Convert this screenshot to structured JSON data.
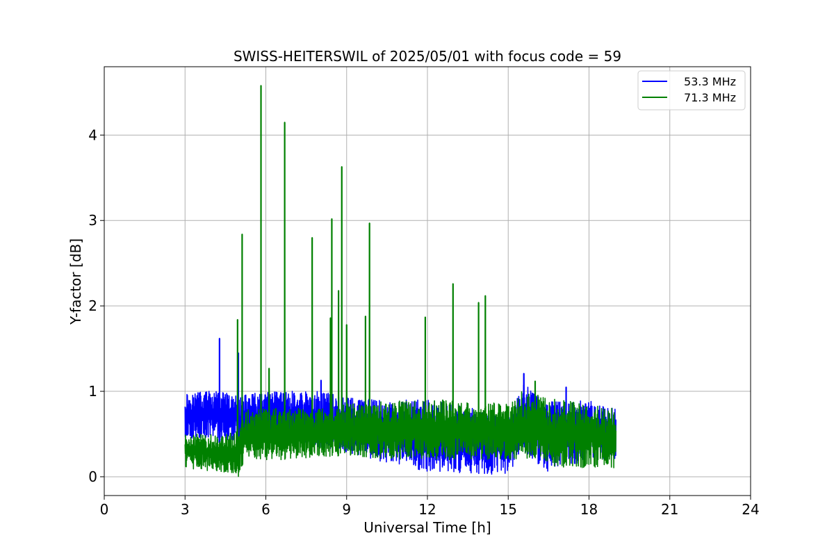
{
  "chart_data": {
    "type": "line",
    "title": "SWISS-HEITERSWIL of 2025/05/01 with focus code = 59",
    "xlabel": "Universal Time [h]",
    "ylabel": "Y-factor [dB]",
    "xlim": [
      0,
      24
    ],
    "ylim": [
      -0.22,
      4.8
    ],
    "xticks": [
      0,
      3,
      6,
      9,
      12,
      15,
      18,
      21,
      24
    ],
    "yticks": [
      0,
      1,
      2,
      3,
      4
    ],
    "grid": true,
    "legend_position": "top-right",
    "series": [
      {
        "name": "53.3 MHz",
        "color": "#0000ff",
        "x_range": [
          3.0,
          19.0
        ],
        "baseline_profile": [
          {
            "x": 3.0,
            "low": 0.45,
            "high": 1.0
          },
          {
            "x": 4.2,
            "low": 0.45,
            "high": 1.0
          },
          {
            "x": 5.0,
            "low": 0.4,
            "high": 0.95
          },
          {
            "x": 6.0,
            "low": 0.4,
            "high": 1.0
          },
          {
            "x": 8.0,
            "low": 0.35,
            "high": 1.0
          },
          {
            "x": 10.0,
            "low": 0.2,
            "high": 0.9
          },
          {
            "x": 12.0,
            "low": 0.05,
            "high": 0.9
          },
          {
            "x": 13.0,
            "low": 0.05,
            "high": 0.85
          },
          {
            "x": 15.0,
            "low": 0.02,
            "high": 0.7
          },
          {
            "x": 15.5,
            "low": 0.3,
            "high": 1.1
          },
          {
            "x": 16.5,
            "low": 0.05,
            "high": 0.9
          },
          {
            "x": 18.0,
            "low": 0.2,
            "high": 0.9
          },
          {
            "x": 19.0,
            "low": 0.2,
            "high": 0.8
          }
        ],
        "peaks": [
          {
            "x": 4.28,
            "y": 1.62
          },
          {
            "x": 4.98,
            "y": 1.45
          },
          {
            "x": 8.05,
            "y": 1.13
          },
          {
            "x": 15.58,
            "y": 1.21
          },
          {
            "x": 17.15,
            "y": 1.05
          }
        ]
      },
      {
        "name": "71.3 MHz",
        "color": "#008000",
        "x_range": [
          3.0,
          19.0
        ],
        "baseline_profile": [
          {
            "x": 3.0,
            "low": 0.1,
            "high": 0.5
          },
          {
            "x": 4.5,
            "low": 0.05,
            "high": 0.5
          },
          {
            "x": 5.0,
            "low": 0.0,
            "high": 0.55
          },
          {
            "x": 5.2,
            "low": 0.2,
            "high": 0.8
          },
          {
            "x": 7.0,
            "low": 0.2,
            "high": 0.8
          },
          {
            "x": 9.0,
            "low": 0.25,
            "high": 0.85
          },
          {
            "x": 11.0,
            "low": 0.2,
            "high": 0.9
          },
          {
            "x": 13.0,
            "low": 0.2,
            "high": 0.9
          },
          {
            "x": 15.0,
            "low": 0.2,
            "high": 0.85
          },
          {
            "x": 15.5,
            "low": 0.2,
            "high": 1.0
          },
          {
            "x": 17.0,
            "low": 0.1,
            "high": 0.9
          },
          {
            "x": 19.0,
            "low": 0.1,
            "high": 0.8
          }
        ],
        "peaks": [
          {
            "x": 4.95,
            "y": 1.84
          },
          {
            "x": 5.12,
            "y": 2.84
          },
          {
            "x": 5.82,
            "y": 4.58
          },
          {
            "x": 6.12,
            "y": 1.27
          },
          {
            "x": 6.7,
            "y": 4.15
          },
          {
            "x": 7.72,
            "y": 2.8
          },
          {
            "x": 8.4,
            "y": 1.86
          },
          {
            "x": 8.45,
            "y": 3.02
          },
          {
            "x": 8.7,
            "y": 2.18
          },
          {
            "x": 8.82,
            "y": 3.63
          },
          {
            "x": 9.0,
            "y": 1.78
          },
          {
            "x": 9.7,
            "y": 1.88
          },
          {
            "x": 9.85,
            "y": 2.97
          },
          {
            "x": 11.92,
            "y": 1.87
          },
          {
            "x": 12.95,
            "y": 2.26
          },
          {
            "x": 13.9,
            "y": 2.04
          },
          {
            "x": 14.15,
            "y": 2.12
          },
          {
            "x": 16.0,
            "y": 1.12
          }
        ]
      }
    ]
  }
}
